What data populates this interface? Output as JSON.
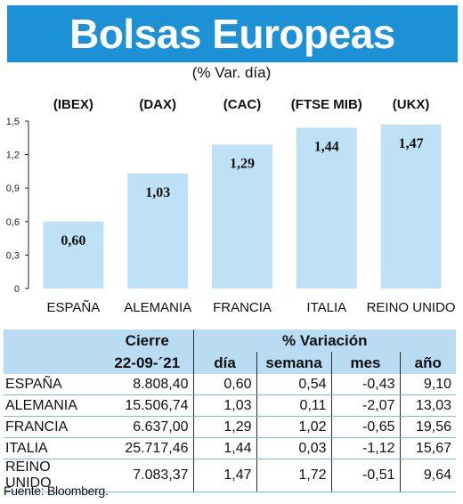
{
  "title": "Bolsas Europeas",
  "subtitle": "(% Var. día)",
  "chart_data": {
    "type": "bar",
    "categories": [
      "ESPAÑA",
      "ALEMANIA",
      "FRANCIA",
      "ITALIA",
      "REINO UNIDO"
    ],
    "indices": [
      "(IBEX)",
      "(DAX)",
      "(CAC)",
      "(FTSE MIB)",
      "(UKX)"
    ],
    "values": [
      0.6,
      1.03,
      1.29,
      1.44,
      1.47
    ],
    "value_labels": [
      "0,60",
      "1,03",
      "1,29",
      "1,44",
      "1,47"
    ],
    "yticks": [
      0,
      0.3,
      0.6,
      0.9,
      1.2,
      1.5
    ],
    "ytick_labels": [
      "0",
      "0,3",
      "0,6",
      "0,9",
      "1,2",
      "1,5"
    ],
    "ylim": [
      0,
      1.5
    ],
    "bar_color": "#bfe1f6",
    "grid": false
  },
  "table": {
    "header_cierre": "Cierre",
    "header_variacion": "% Variación",
    "date": "22-09-´21",
    "sub_headers": [
      "día",
      "semana",
      "mes",
      "año"
    ],
    "rows": [
      {
        "country": "ESPAÑA",
        "close": "8.808,40",
        "day": "0,60",
        "week": "0,54",
        "month": "-0,43",
        "year": "9,10"
      },
      {
        "country": "ALEMANIA",
        "close": "15.506,74",
        "day": "1,03",
        "week": "0,11",
        "month": "-2,07",
        "year": "13,03"
      },
      {
        "country": "FRANCIA",
        "close": "6.637,00",
        "day": "1,29",
        "week": "1,02",
        "month": "-0,65",
        "year": "19,56"
      },
      {
        "country": "ITALIA",
        "close": "25.717,46",
        "day": "1,44",
        "week": "0,03",
        "month": "-1,12",
        "year": "15,67"
      },
      {
        "country": "REINO UNIDO",
        "close": "7.083,37",
        "day": "1,47",
        "week": "1,72",
        "month": "-0,51",
        "year": "9,64"
      }
    ]
  },
  "source": "Fuente: Bloomberg."
}
